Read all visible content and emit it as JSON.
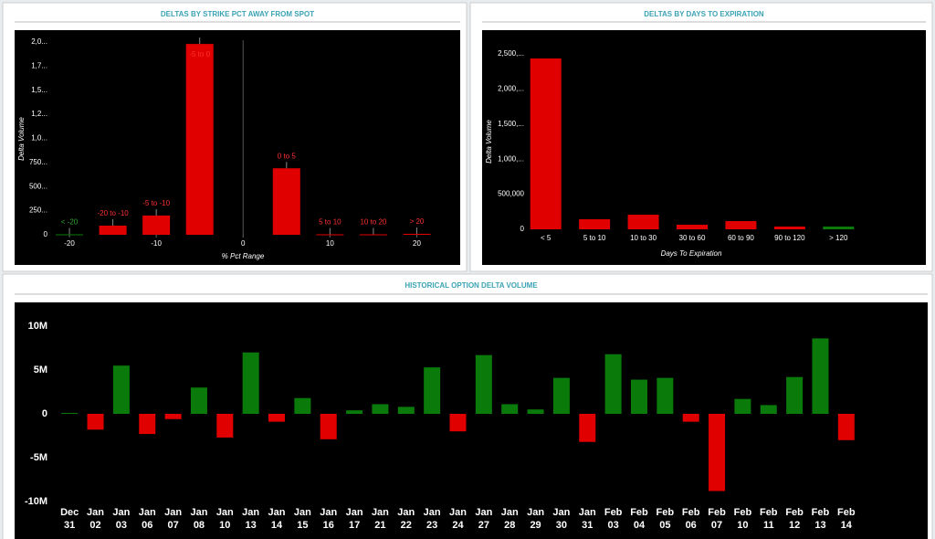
{
  "chart_data": [
    {
      "type": "bar",
      "title": "DELTAS BY STRIKE PCT AWAY FROM SPOT",
      "y_label": "Delta Volume",
      "x_label": "% Pct Range",
      "x": [
        -20,
        -15,
        -10,
        -5,
        5,
        10,
        15,
        20
      ],
      "bar_labels": [
        "< -20",
        "-20 to -10",
        "-5 to -10",
        "-5 to 0",
        "0 to 5",
        "5 to 10",
        "10 to 20",
        "> 20"
      ],
      "values": [
        5000,
        95000,
        200000,
        1980000,
        690000,
        5000,
        5000,
        10000
      ],
      "colors": [
        "#0a7a0a",
        "#e00000",
        "#e00000",
        "#e00000",
        "#e00000",
        "#e00000",
        "#e00000",
        "#e00000"
      ],
      "xlim": [
        -24,
        23
      ],
      "xticks": [
        -20,
        -10,
        0,
        10,
        20
      ],
      "ylim": [
        0,
        2000000
      ],
      "yticks": [
        0,
        {
          "value": 250000,
          "label": "250..."
        },
        {
          "value": 500000,
          "label": "500..."
        },
        {
          "value": 750000,
          "label": "750..."
        },
        {
          "value": 1000000,
          "label": "1,0..."
        },
        {
          "value": 1250000,
          "label": "1,2..."
        },
        {
          "value": 1500000,
          "label": "1,5..."
        },
        {
          "value": 1750000,
          "label": "1,7..."
        },
        {
          "value": 2000000,
          "label": "2,0..."
        }
      ]
    },
    {
      "type": "bar",
      "title": "DELTAS BY DAYS TO EXPIRATION",
      "y_label": "Delta Volume",
      "x_label": "Days To Expiration",
      "categories": [
        "< 5",
        "5 to 10",
        "10 to 30",
        "30 to 60",
        "60 to 90",
        "90 to 120",
        "> 120"
      ],
      "values": [
        2435000,
        143000,
        208000,
        65000,
        117000,
        39000,
        39000
      ],
      "colors": [
        "#e00000",
        "#e00000",
        "#e00000",
        "#e00000",
        "#e00000",
        "#e00000",
        "#0a7a0a"
      ],
      "ylim": [
        0,
        2500000
      ],
      "yticks": [
        0,
        {
          "value": 500000,
          "label": "500,000"
        },
        {
          "value": 1000000,
          "label": "1,000,..."
        },
        {
          "value": 1500000,
          "label": "1,500,..."
        },
        {
          "value": 2000000,
          "label": "2,000,..."
        },
        {
          "value": 2500000,
          "label": "2,500,..."
        }
      ]
    },
    {
      "type": "bar",
      "title": "HISTORICAL OPTION DELTA VOLUME",
      "categories": [
        [
          "Dec",
          "31"
        ],
        [
          "Jan",
          "02"
        ],
        [
          "Jan",
          "03"
        ],
        [
          "Jan",
          "06"
        ],
        [
          "Jan",
          "07"
        ],
        [
          "Jan",
          "08"
        ],
        [
          "Jan",
          "10"
        ],
        [
          "Jan",
          "13"
        ],
        [
          "Jan",
          "14"
        ],
        [
          "Jan",
          "15"
        ],
        [
          "Jan",
          "16"
        ],
        [
          "Jan",
          "17"
        ],
        [
          "Jan",
          "21"
        ],
        [
          "Jan",
          "22"
        ],
        [
          "Jan",
          "23"
        ],
        [
          "Jan",
          "24"
        ],
        [
          "Jan",
          "27"
        ],
        [
          "Jan",
          "28"
        ],
        [
          "Jan",
          "29"
        ],
        [
          "Jan",
          "30"
        ],
        [
          "Jan",
          "31"
        ],
        [
          "Feb",
          "03"
        ],
        [
          "Feb",
          "04"
        ],
        [
          "Feb",
          "05"
        ],
        [
          "Feb",
          "06"
        ],
        [
          "Feb",
          "07"
        ],
        [
          "Feb",
          "10"
        ],
        [
          "Feb",
          "11"
        ],
        [
          "Feb",
          "12"
        ],
        [
          "Feb",
          "13"
        ],
        [
          "Feb",
          "14"
        ]
      ],
      "values": [
        100000,
        -1800000,
        5500000,
        -2300000,
        -600000,
        3000000,
        -2700000,
        7000000,
        -900000,
        1800000,
        -2900000,
        400000,
        1100000,
        800000,
        5300000,
        -2000000,
        6700000,
        1100000,
        500000,
        4100000,
        -3200000,
        6800000,
        3900000,
        4100000,
        -900000,
        -8800000,
        1700000,
        1000000,
        4200000,
        8600000,
        -3000000
      ],
      "colors": [
        "#0a7a0a",
        "#e00000",
        "#0a7a0a",
        "#e00000",
        "#e00000",
        "#0a7a0a",
        "#e00000",
        "#0a7a0a",
        "#e00000",
        "#0a7a0a",
        "#e00000",
        "#0a7a0a",
        "#0a7a0a",
        "#0a7a0a",
        "#0a7a0a",
        "#e00000",
        "#0a7a0a",
        "#0a7a0a",
        "#0a7a0a",
        "#0a7a0a",
        "#e00000",
        "#0a7a0a",
        "#0a7a0a",
        "#0a7a0a",
        "#e00000",
        "#e00000",
        "#0a7a0a",
        "#0a7a0a",
        "#0a7a0a",
        "#0a7a0a",
        "#e00000"
      ],
      "ylim": [
        -10000000,
        10000000
      ],
      "yticks": [
        {
          "value": -10000000,
          "label": "-10M"
        },
        {
          "value": -5000000,
          "label": "-5M"
        },
        0,
        {
          "value": 5000000,
          "label": "5M"
        },
        {
          "value": 10000000,
          "label": "10M"
        }
      ]
    }
  ]
}
